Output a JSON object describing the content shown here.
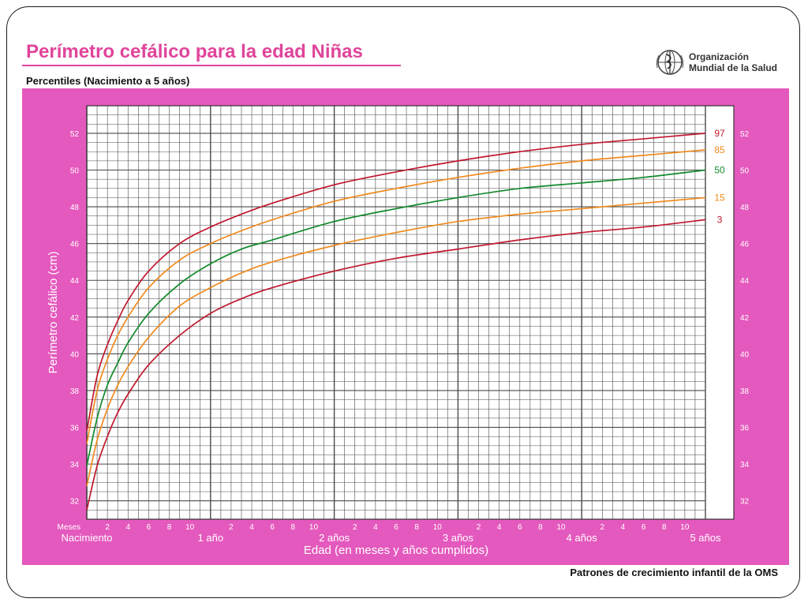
{
  "header": {
    "title": "Perímetro cefálico para la edad  Niñas",
    "subtitle": "Percentiles (Nacimiento a 5 años)",
    "org_line1": "Organización",
    "org_line2": "Mundial de la Salud",
    "logo_icon": "who-emblem-icon"
  },
  "footer": {
    "text": "Patrones de crecimiento infantil de la OMS"
  },
  "colors": {
    "background": "#e459bd",
    "grid": "#4a4a4a",
    "p97": "#c0182d",
    "p85": "#f08a1e",
    "p50": "#128a2c",
    "p15": "#f08a1e",
    "p3": "#c0182d",
    "title": "#e0449b"
  },
  "chart_data": {
    "type": "line",
    "title": "Perímetro cefálico para la edad  Niñas",
    "subtitle": "Percentiles (Nacimiento a 5 años)",
    "xlabel": "Edad (en meses y años cumplidos)",
    "ylabel": "Perímetro cefálico (cm)",
    "xunit_label": "Meses",
    "xlim": [
      0,
      60
    ],
    "ylim": [
      31,
      53.5
    ],
    "grid": true,
    "legend": "right-labels",
    "y_ticks": [
      32,
      34,
      36,
      38,
      40,
      42,
      44,
      46,
      48,
      50,
      52
    ],
    "x_month_ticks": [
      "2",
      "4",
      "6",
      "8",
      "10"
    ],
    "x_year_labels": [
      {
        "month": 0,
        "label": "Nacimiento"
      },
      {
        "month": 12,
        "label": "1 año"
      },
      {
        "month": 24,
        "label": "2 años"
      },
      {
        "month": 36,
        "label": "3 años"
      },
      {
        "month": 48,
        "label": "4 años"
      },
      {
        "month": 60,
        "label": "5 años"
      }
    ],
    "x": [
      0,
      1,
      2,
      3,
      4,
      6,
      9,
      12,
      15,
      18,
      24,
      30,
      36,
      42,
      48,
      54,
      60
    ],
    "series": [
      {
        "name": "97",
        "color_key": "p97",
        "values": [
          35.8,
          38.8,
          40.5,
          41.8,
          42.9,
          44.5,
          46.0,
          46.9,
          47.6,
          48.2,
          49.2,
          49.9,
          50.5,
          51.0,
          51.4,
          51.7,
          52.0
        ]
      },
      {
        "name": "85",
        "color_key": "p85",
        "values": [
          35.1,
          38.0,
          39.7,
          41.0,
          42.0,
          43.6,
          45.1,
          46.0,
          46.7,
          47.3,
          48.3,
          49.0,
          49.6,
          50.1,
          50.5,
          50.8,
          51.1
        ]
      },
      {
        "name": "50",
        "color_key": "p50",
        "values": [
          33.9,
          36.5,
          38.3,
          39.5,
          40.6,
          42.2,
          43.8,
          44.9,
          45.7,
          46.2,
          47.2,
          47.9,
          48.5,
          49.0,
          49.3,
          49.6,
          50.0
        ]
      },
      {
        "name": "15",
        "color_key": "p15",
        "values": [
          32.8,
          35.3,
          37.0,
          38.3,
          39.3,
          40.9,
          42.6,
          43.6,
          44.4,
          45.0,
          45.9,
          46.6,
          47.2,
          47.6,
          47.9,
          48.2,
          48.5
        ]
      },
      {
        "name": "3",
        "color_key": "p3",
        "values": [
          31.5,
          33.9,
          35.5,
          36.8,
          37.8,
          39.4,
          41.0,
          42.2,
          43.0,
          43.6,
          44.5,
          45.2,
          45.7,
          46.2,
          46.6,
          46.9,
          47.3
        ]
      }
    ]
  }
}
